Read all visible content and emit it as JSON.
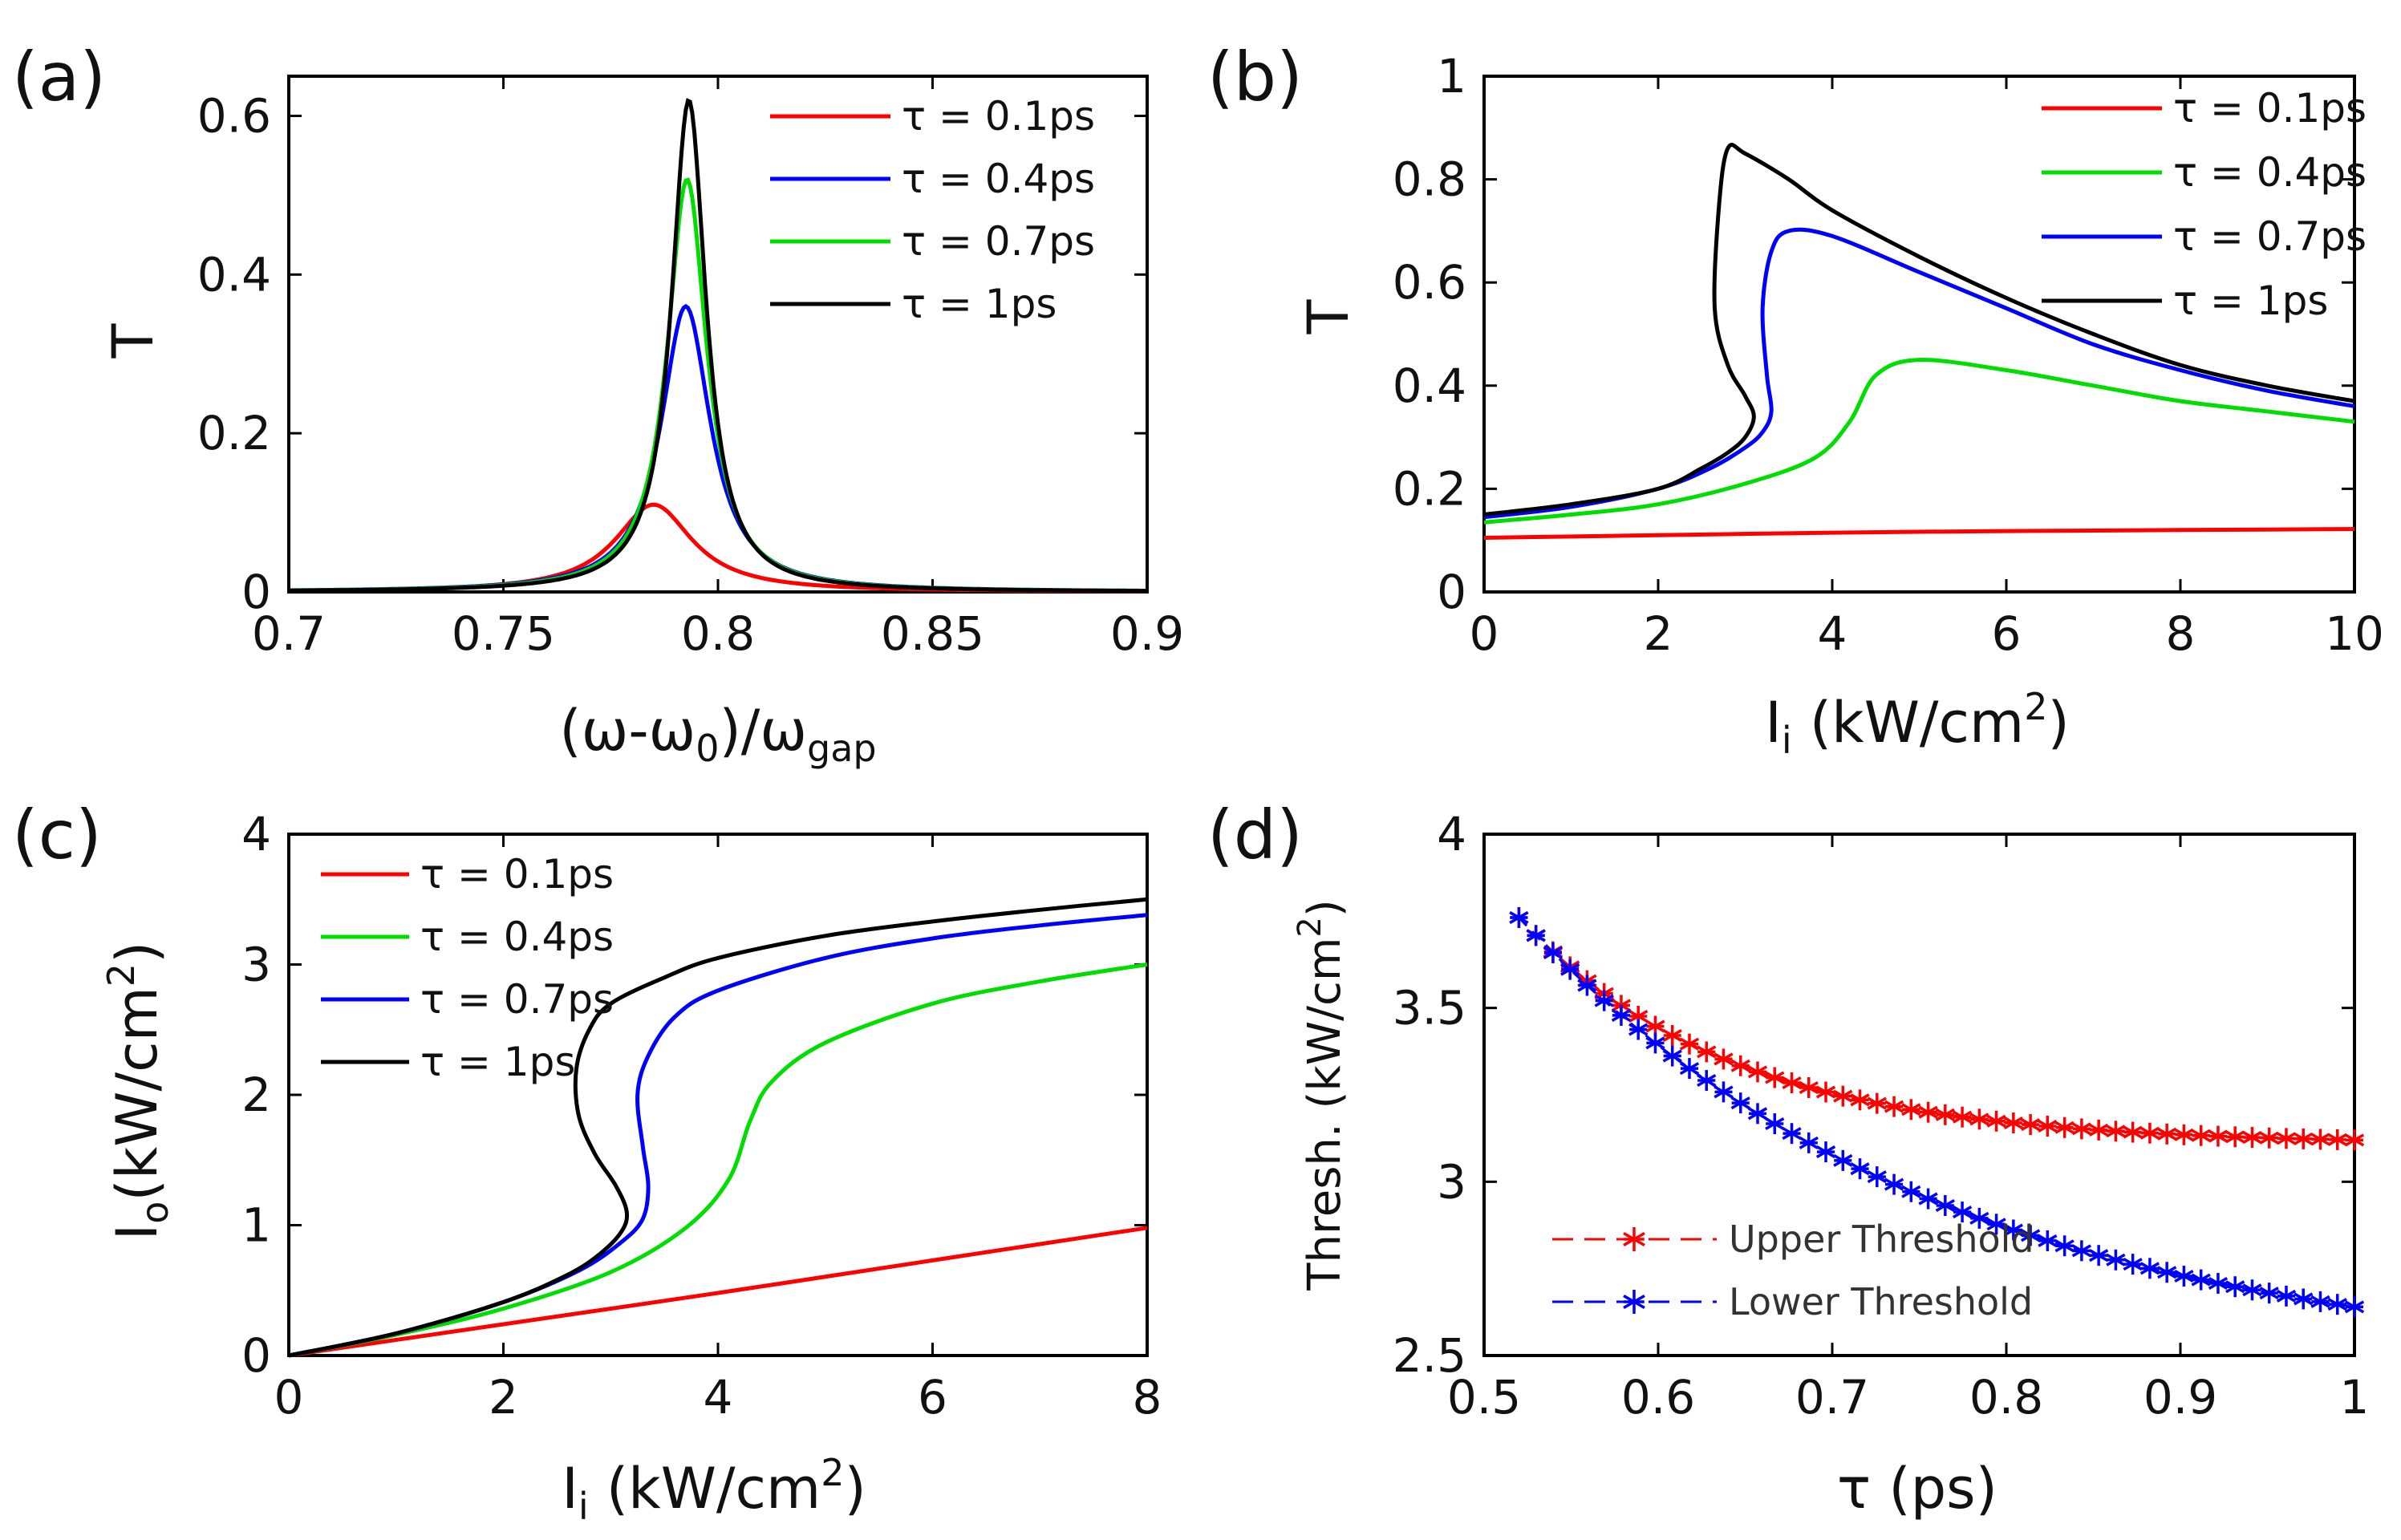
{
  "chart_data": [
    {
      "id": "a",
      "type": "line",
      "panel_label": "(a)",
      "xlabel": "(ω-ω",
      "xlabel_sub1": "0",
      "xlabel_mid": ")/ω",
      "xlabel_sub2": "gap",
      "ylabel": "T",
      "xlim": [
        0.7,
        0.9
      ],
      "ylim": [
        0,
        0.65
      ],
      "xticks": [
        0.7,
        0.75,
        0.8,
        0.85,
        0.9
      ],
      "xtick_labels": [
        "0.7",
        "0.75",
        "0.8",
        "0.85",
        "0.9"
      ],
      "yticks": [
        0,
        0.2,
        0.4,
        0.6
      ],
      "ytick_labels": [
        "0",
        "0.2",
        "0.4",
        "0.6"
      ],
      "legend_position": "top-right",
      "series": [
        {
          "name": "τ = 0.1ps",
          "color": "#ff0000",
          "peak_x": 0.785,
          "peak_y": 0.11,
          "width": 0.011
        },
        {
          "name": "τ = 0.4ps",
          "color": "#0000ff",
          "peak_x": 0.7925,
          "peak_y": 0.36,
          "width": 0.007
        },
        {
          "name": "τ = 0.7ps",
          "color": "#00dd00",
          "peak_x": 0.7928,
          "peak_y": 0.52,
          "width": 0.0056
        },
        {
          "name": "τ = 1ps",
          "color": "#000000",
          "peak_x": 0.7932,
          "peak_y": 0.62,
          "width": 0.0049
        }
      ]
    },
    {
      "id": "b",
      "type": "line",
      "panel_label": "(b)",
      "xlabel": "I",
      "xlabel_sub": "i",
      "xlabel_rest": " (kW/cm",
      "xlabel_sup": "2",
      "xlabel_end": ")",
      "ylabel": "T",
      "xlim": [
        0,
        10
      ],
      "ylim": [
        0,
        1
      ],
      "xticks": [
        0,
        2,
        4,
        6,
        8,
        10
      ],
      "xtick_labels": [
        "0",
        "2",
        "4",
        "6",
        "8",
        "10"
      ],
      "yticks": [
        0,
        0.2,
        0.4,
        0.6,
        0.8,
        1
      ],
      "ytick_labels": [
        "0",
        "0.2",
        "0.4",
        "0.6",
        "0.8",
        "1"
      ],
      "legend_position": "top-right",
      "series": [
        {
          "name": "τ = 0.1ps",
          "color": "#ff0000",
          "x": [
            0,
            2,
            4,
            6,
            8,
            10
          ],
          "y": [
            0.105,
            0.11,
            0.115,
            0.118,
            0.12,
            0.122
          ]
        },
        {
          "name": "τ = 0.4ps",
          "color": "#00dd00",
          "x": [
            0,
            1,
            2,
            3,
            3.8,
            4.2,
            4.5,
            5.0,
            6,
            7,
            8,
            9,
            10
          ],
          "y": [
            0.135,
            0.15,
            0.17,
            0.21,
            0.26,
            0.33,
            0.42,
            0.45,
            0.43,
            0.4,
            0.37,
            0.35,
            0.33
          ]
        },
        {
          "name": "τ = 0.7ps",
          "color": "#0000ff",
          "x": [
            0,
            1,
            2,
            2.6,
            3.0,
            3.2,
            3.3,
            3.25,
            3.2,
            3.3,
            3.5,
            4.0,
            5,
            6,
            7,
            8,
            9,
            10
          ],
          "y": [
            0.145,
            0.165,
            0.2,
            0.24,
            0.28,
            0.31,
            0.35,
            0.42,
            0.55,
            0.66,
            0.7,
            0.69,
            0.62,
            0.55,
            0.48,
            0.43,
            0.39,
            0.36
          ]
        },
        {
          "name": "τ = 1ps",
          "color": "#000000",
          "x": [
            0,
            1,
            2,
            2.5,
            2.8,
            3.0,
            3.1,
            3.0,
            2.8,
            2.65,
            2.7,
            2.8,
            3.0,
            3.5,
            4,
            5,
            6,
            7,
            8,
            9,
            10
          ],
          "y": [
            0.15,
            0.17,
            0.2,
            0.24,
            0.27,
            0.3,
            0.34,
            0.38,
            0.44,
            0.55,
            0.75,
            0.86,
            0.85,
            0.8,
            0.74,
            0.65,
            0.57,
            0.5,
            0.44,
            0.4,
            0.37
          ]
        }
      ]
    },
    {
      "id": "c",
      "type": "line",
      "panel_label": "(c)",
      "xlabel": "I",
      "xlabel_sub": "i",
      "xlabel_rest": " (kW/cm",
      "xlabel_sup": "2",
      "xlabel_end": ")",
      "ylabel": "I",
      "ylabel_sub": "o",
      "ylabel_rest": "(kW/cm",
      "ylabel_sup": "2",
      "ylabel_end": ")",
      "xlim": [
        0,
        8
      ],
      "ylim": [
        0,
        4
      ],
      "xticks": [
        0,
        2,
        4,
        6,
        8
      ],
      "xtick_labels": [
        "0",
        "2",
        "4",
        "6",
        "8"
      ],
      "yticks": [
        0,
        1,
        2,
        3,
        4
      ],
      "ytick_labels": [
        "0",
        "1",
        "2",
        "3",
        "4"
      ],
      "legend_position": "top-left",
      "series": [
        {
          "name": "τ = 0.1ps",
          "color": "#ff0000",
          "x": [
            0,
            2,
            4,
            6,
            8
          ],
          "y": [
            0,
            0.24,
            0.48,
            0.73,
            0.98
          ]
        },
        {
          "name": "τ = 0.4ps",
          "color": "#00dd00",
          "x": [
            0,
            1,
            2,
            3,
            3.7,
            4.1,
            4.3,
            4.5,
            5,
            6,
            7,
            8
          ],
          "y": [
            0,
            0.16,
            0.36,
            0.64,
            0.98,
            1.35,
            1.8,
            2.1,
            2.4,
            2.7,
            2.87,
            3.0
          ]
        },
        {
          "name": "τ = 0.7ps",
          "color": "#0000ff",
          "x": [
            0,
            1,
            2,
            2.7,
            3.1,
            3.3,
            3.35,
            3.3,
            3.25,
            3.35,
            3.6,
            4,
            5,
            6,
            7,
            8
          ],
          "y": [
            0,
            0.17,
            0.41,
            0.65,
            0.87,
            1.05,
            1.3,
            1.6,
            2.0,
            2.3,
            2.6,
            2.8,
            3.05,
            3.2,
            3.3,
            3.38
          ]
        },
        {
          "name": "τ = 1ps",
          "color": "#000000",
          "x": [
            0,
            1,
            2,
            2.6,
            2.9,
            3.1,
            3.15,
            3.05,
            2.85,
            2.7,
            2.68,
            2.8,
            3.0,
            3.5,
            4,
            5,
            6,
            7,
            8
          ],
          "y": [
            0,
            0.17,
            0.41,
            0.62,
            0.78,
            0.95,
            1.1,
            1.3,
            1.55,
            1.85,
            2.2,
            2.5,
            2.7,
            2.9,
            3.05,
            3.22,
            3.33,
            3.42,
            3.5
          ]
        }
      ]
    },
    {
      "id": "d",
      "type": "scatter",
      "panel_label": "(d)",
      "xlabel": "τ (ps)",
      "ylabel": "Thresh. (kW/cm",
      "ylabel_sup": "2",
      "ylabel_end": ")",
      "xlim": [
        0.5,
        1.0
      ],
      "ylim": [
        2.5,
        4
      ],
      "xticks": [
        0.5,
        0.6,
        0.7,
        0.8,
        0.9,
        1.0
      ],
      "xtick_labels": [
        "0.5",
        "0.6",
        "0.7",
        "0.8",
        "0.9",
        "1"
      ],
      "yticks": [
        2.5,
        3,
        3.5,
        4
      ],
      "ytick_labels": [
        "2.5",
        "3",
        "3.5",
        "4"
      ],
      "legend_position": "bottom-left",
      "series": [
        {
          "name": "Upper Threshold",
          "color": "#ff0000",
          "x_start": 0.52,
          "x_end": 1.0,
          "count": 50,
          "y_start": 3.76,
          "y_end": 3.12,
          "decay": 4.0
        },
        {
          "name": "Lower Threshold",
          "color": "#0000ff",
          "x_start": 0.52,
          "x_end": 1.0,
          "count": 50,
          "y_start": 3.76,
          "y_end": 2.64,
          "decay": 2.0
        }
      ]
    }
  ]
}
